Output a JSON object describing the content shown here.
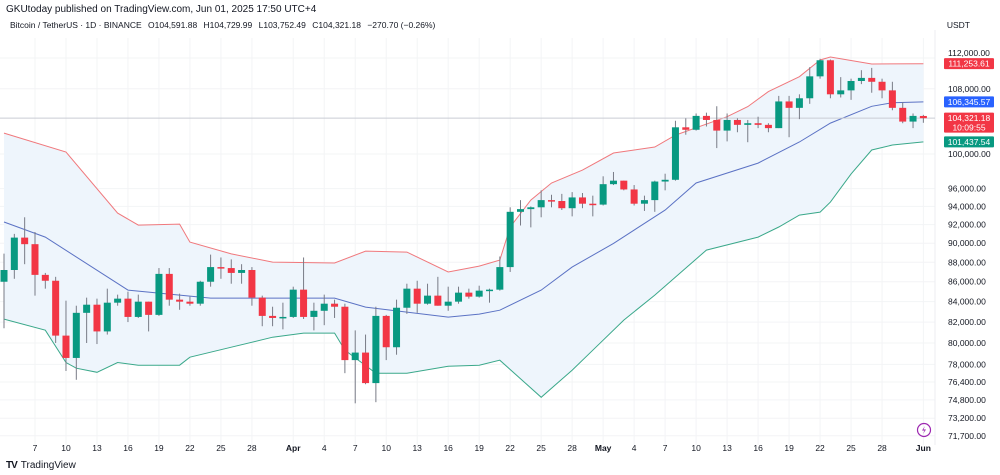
{
  "header": {
    "published": "GKUtoday published on TradingView.com, Jun 01, 2025 17:50 UTC+4",
    "symbol": "Bitcoin / TetherUS · 1D · BINANCE",
    "open": "O104,591.88",
    "high": "H104,729.99",
    "low": "L103,752.49",
    "close": "C104,321.18",
    "change": "−270.70 (−0.26%)",
    "quote_currency": "USDT"
  },
  "footer": {
    "brand": "TradingView",
    "brand_mark": "TV"
  },
  "colors": {
    "up": "#089981",
    "down": "#f23645",
    "upper_band": "#f0787c",
    "basis": "#5b72c4",
    "lower_band": "#3aa88a",
    "band_fill": "#eef5fc",
    "last_price": "#f23645"
  },
  "chart_data": {
    "type": "candlestick",
    "title": "",
    "scale": "log",
    "grid": true,
    "ylim": [
      71000,
      114500
    ],
    "y_ticks": [
      "112,000.00",
      "108,000.00",
      "100,000.00",
      "96,000.00",
      "94,000.00",
      "92,000.00",
      "90,000.00",
      "88,000.00",
      "86,000.00",
      "84,000.00",
      "82,000.00",
      "80,000.00",
      "78,000.00",
      "76,400.00",
      "74,800.00",
      "73,200.00",
      "71,700.00"
    ],
    "x_ticks": [
      {
        "date": "2025-03-07",
        "label": "7"
      },
      {
        "date": "2025-03-10",
        "label": "10"
      },
      {
        "date": "2025-03-13",
        "label": "13"
      },
      {
        "date": "2025-03-16",
        "label": "16"
      },
      {
        "date": "2025-03-19",
        "label": "19"
      },
      {
        "date": "2025-03-22",
        "label": "22"
      },
      {
        "date": "2025-03-25",
        "label": "25"
      },
      {
        "date": "2025-03-28",
        "label": "28"
      },
      {
        "date": "2025-04-01",
        "label": "Apr",
        "bold": true
      },
      {
        "date": "2025-04-04",
        "label": "4"
      },
      {
        "date": "2025-04-07",
        "label": "7"
      },
      {
        "date": "2025-04-10",
        "label": "10"
      },
      {
        "date": "2025-04-13",
        "label": "13"
      },
      {
        "date": "2025-04-16",
        "label": "16"
      },
      {
        "date": "2025-04-19",
        "label": "19"
      },
      {
        "date": "2025-04-22",
        "label": "22"
      },
      {
        "date": "2025-04-25",
        "label": "25"
      },
      {
        "date": "2025-04-28",
        "label": "28"
      },
      {
        "date": "2025-05-01",
        "label": "May",
        "bold": true
      },
      {
        "date": "2025-05-04",
        "label": "4"
      },
      {
        "date": "2025-05-07",
        "label": "7"
      },
      {
        "date": "2025-05-10",
        "label": "10"
      },
      {
        "date": "2025-05-13",
        "label": "13"
      },
      {
        "date": "2025-05-16",
        "label": "16"
      },
      {
        "date": "2025-05-19",
        "label": "19"
      },
      {
        "date": "2025-05-22",
        "label": "22"
      },
      {
        "date": "2025-05-25",
        "label": "25"
      },
      {
        "date": "2025-05-28",
        "label": "28"
      },
      {
        "date": "2025-06-01",
        "label": "Jun",
        "bold": true
      }
    ],
    "first_date": "2025-03-04",
    "candles": [
      [
        86000,
        88900,
        81400,
        87200
      ],
      [
        87200,
        91000,
        86300,
        90600
      ],
      [
        90600,
        92800,
        87800,
        89900
      ],
      [
        89900,
        91200,
        84600,
        86700
      ],
      [
        86700,
        86900,
        85300,
        86100
      ],
      [
        86100,
        86500,
        80000,
        80700
      ],
      [
        80700,
        84100,
        77400,
        78600
      ],
      [
        78600,
        83600,
        76600,
        82900
      ],
      [
        82900,
        84400,
        80000,
        83700
      ],
      [
        83700,
        84300,
        79900,
        81100
      ],
      [
        81100,
        85300,
        80800,
        83900
      ],
      [
        83900,
        84700,
        83600,
        84300
      ],
      [
        84300,
        85000,
        82000,
        82500
      ],
      [
        82500,
        84700,
        82400,
        84000
      ],
      [
        84000,
        84000,
        81100,
        82700
      ],
      [
        82700,
        87400,
        82600,
        86800
      ],
      [
        86800,
        87400,
        83600,
        84200
      ],
      [
        84200,
        84800,
        83200,
        84000
      ],
      [
        84000,
        84500,
        83600,
        83800
      ],
      [
        83800,
        86100,
        83600,
        86000
      ],
      [
        86000,
        88800,
        85500,
        87500
      ],
      [
        87500,
        88500,
        86300,
        87400
      ],
      [
        87400,
        88300,
        85800,
        86900
      ],
      [
        86900,
        87800,
        85800,
        87200
      ],
      [
        87200,
        87500,
        83600,
        84400
      ],
      [
        84400,
        84600,
        81600,
        82600
      ],
      [
        82600,
        83500,
        81600,
        82400
      ],
      [
        82400,
        83900,
        81300,
        82500
      ],
      [
        82500,
        85500,
        82400,
        85200
      ],
      [
        85200,
        88500,
        82300,
        82500
      ],
      [
        82500,
        83900,
        81200,
        83100
      ],
      [
        83100,
        84700,
        81700,
        83800
      ],
      [
        83800,
        84200,
        82400,
        83500
      ],
      [
        83500,
        83800,
        77200,
        78400
      ],
      [
        78400,
        81200,
        74500,
        79100
      ],
      [
        79100,
        80800,
        76200,
        76300
      ],
      [
        76300,
        83500,
        74600,
        82600
      ],
      [
        82600,
        82700,
        78400,
        79600
      ],
      [
        79600,
        84200,
        78900,
        83400
      ],
      [
        83400,
        85800,
        82800,
        85300
      ],
      [
        85300,
        86100,
        82900,
        83800
      ],
      [
        83800,
        85800,
        83700,
        84600
      ],
      [
        84600,
        86500,
        83600,
        83600
      ],
      [
        83600,
        85500,
        83100,
        84000
      ],
      [
        84000,
        85500,
        83800,
        84900
      ],
      [
        84900,
        85300,
        84300,
        84500
      ],
      [
        84500,
        85600,
        84400,
        85100
      ],
      [
        85100,
        85300,
        83900,
        85200
      ],
      [
        85200,
        88600,
        85100,
        87500
      ],
      [
        87500,
        93900,
        87000,
        93400
      ],
      [
        93400,
        94700,
        91900,
        93700
      ],
      [
        93700,
        94000,
        91700,
        93900
      ],
      [
        93900,
        95800,
        92800,
        94700
      ],
      [
        94700,
        95300,
        93900,
        94600
      ],
      [
        94600,
        95400,
        93600,
        93800
      ],
      [
        93800,
        95600,
        92900,
        95000
      ],
      [
        95000,
        95500,
        93800,
        94300
      ],
      [
        94300,
        95200,
        92900,
        94200
      ],
      [
        94200,
        97400,
        94100,
        96500
      ],
      [
        96500,
        97900,
        96400,
        96900
      ],
      [
        96900,
        96900,
        95800,
        95900
      ],
      [
        95900,
        96400,
        94100,
        94300
      ],
      [
        94300,
        95200,
        93500,
        94700
      ],
      [
        94700,
        96900,
        93400,
        96800
      ],
      [
        96800,
        97700,
        95800,
        97000
      ],
      [
        97000,
        104000,
        96900,
        103200
      ],
      [
        103200,
        104300,
        102300,
        102900
      ],
      [
        102900,
        104900,
        102800,
        104600
      ],
      [
        104600,
        105000,
        103300,
        104100
      ],
      [
        104100,
        105800,
        100700,
        102800
      ],
      [
        102800,
        104900,
        101500,
        104100
      ],
      [
        104100,
        104300,
        102600,
        103500
      ],
      [
        103500,
        104100,
        101400,
        103700
      ],
      [
        103700,
        104500,
        103100,
        103500
      ],
      [
        103500,
        103700,
        102600,
        103100
      ],
      [
        103100,
        107100,
        103100,
        106400
      ],
      [
        106400,
        107100,
        102000,
        105600
      ],
      [
        105600,
        107300,
        104200,
        106800
      ],
      [
        106800,
        110800,
        106100,
        109600
      ],
      [
        109600,
        111900,
        109300,
        111700
      ],
      [
        111700,
        111800,
        106800,
        107300
      ],
      [
        107300,
        109500,
        106900,
        107800
      ],
      [
        107800,
        109300,
        106600,
        109000
      ],
      [
        109000,
        110400,
        108600,
        109400
      ],
      [
        109400,
        110700,
        107500,
        108900
      ],
      [
        108900,
        109300,
        106800,
        107800
      ],
      [
        107800,
        108900,
        105300,
        105600
      ],
      [
        105600,
        106300,
        103700,
        103900
      ],
      [
        103900,
        104900,
        103100,
        104600
      ],
      [
        104591.88,
        104729.99,
        103752.49,
        104321.18
      ]
    ],
    "bollinger": {
      "upper": [
        [
          "2025-03-04",
          102500
        ],
        [
          "2025-03-10",
          100230
        ],
        [
          "2025-03-15",
          93260
        ],
        [
          "2025-03-17",
          91950
        ],
        [
          "2025-03-21",
          92060
        ],
        [
          "2025-03-22",
          90120
        ],
        [
          "2025-03-26",
          88870
        ],
        [
          "2025-03-30",
          88020
        ],
        [
          "2025-04-05",
          87920
        ],
        [
          "2025-04-08",
          89170
        ],
        [
          "2025-04-12",
          89060
        ],
        [
          "2025-04-16",
          86990
        ],
        [
          "2025-04-19",
          87600
        ],
        [
          "2025-04-21",
          88230
        ],
        [
          "2025-04-22",
          91740
        ],
        [
          "2025-04-24",
          94700
        ],
        [
          "2025-04-26",
          96630
        ],
        [
          "2025-04-29",
          98120
        ],
        [
          "2025-05-02",
          100120
        ],
        [
          "2025-05-06",
          100830
        ],
        [
          "2025-05-08",
          102250
        ],
        [
          "2025-05-13",
          104500
        ],
        [
          "2025-05-15",
          105750
        ],
        [
          "2025-05-17",
          107650
        ],
        [
          "2025-05-20",
          109550
        ],
        [
          "2025-05-22",
          111740
        ],
        [
          "2025-05-23",
          112130
        ],
        [
          "2025-05-27",
          111210
        ],
        [
          "2025-06-01",
          111253.61
        ]
      ],
      "basis": [
        [
          "2025-03-04",
          92280
        ],
        [
          "2025-03-08",
          90650
        ],
        [
          "2025-03-16",
          85150
        ],
        [
          "2025-03-18",
          84950
        ],
        [
          "2025-03-24",
          84350
        ],
        [
          "2025-03-30",
          84350
        ],
        [
          "2025-04-05",
          84350
        ],
        [
          "2025-04-08",
          83460
        ],
        [
          "2025-04-16",
          82480
        ],
        [
          "2025-04-19",
          82780
        ],
        [
          "2025-04-21",
          83160
        ],
        [
          "2025-04-25",
          85150
        ],
        [
          "2025-04-28",
          87500
        ],
        [
          "2025-05-02",
          89980
        ],
        [
          "2025-05-07",
          93590
        ],
        [
          "2025-05-10",
          96630
        ],
        [
          "2025-05-16",
          98930
        ],
        [
          "2025-05-20",
          101420
        ],
        [
          "2025-05-23",
          103710
        ],
        [
          "2025-05-27",
          105790
        ],
        [
          "2025-05-29",
          106240
        ],
        [
          "2025-06-01",
          106345.57
        ]
      ],
      "lower": [
        [
          "2025-03-04",
          82290
        ],
        [
          "2025-03-08",
          81220
        ],
        [
          "2025-03-10",
          78180
        ],
        [
          "2025-03-11",
          77650
        ],
        [
          "2025-03-13",
          77280
        ],
        [
          "2025-03-15",
          78180
        ],
        [
          "2025-03-17",
          77930
        ],
        [
          "2025-03-21",
          77930
        ],
        [
          "2025-03-22",
          78670
        ],
        [
          "2025-03-26",
          79600
        ],
        [
          "2025-03-30",
          80550
        ],
        [
          "2025-04-02",
          80940
        ],
        [
          "2025-04-05",
          80940
        ],
        [
          "2025-04-06",
          79320
        ],
        [
          "2025-04-09",
          77190
        ],
        [
          "2025-04-12",
          77190
        ],
        [
          "2025-04-16",
          77840
        ],
        [
          "2025-04-19",
          77930
        ],
        [
          "2025-04-21",
          78390
        ],
        [
          "2025-04-25",
          75030
        ],
        [
          "2025-04-28",
          77470
        ],
        [
          "2025-04-30",
          79320
        ],
        [
          "2025-05-03",
          82190
        ],
        [
          "2025-05-06",
          84650
        ],
        [
          "2025-05-11",
          89270
        ],
        [
          "2025-05-16",
          90650
        ],
        [
          "2025-05-18",
          91740
        ],
        [
          "2025-05-20",
          93040
        ],
        [
          "2025-05-22",
          93370
        ],
        [
          "2025-05-23",
          94480
        ],
        [
          "2025-05-25",
          97680
        ],
        [
          "2025-05-27",
          100470
        ],
        [
          "2025-05-29",
          101070
        ],
        [
          "2025-06-01",
          101437.54
        ]
      ]
    },
    "price_labels": {
      "upper": "111,253.61",
      "basis": "106,345.57",
      "last": "104,321.18",
      "countdown": "10:09:55",
      "lower": "101,437.54"
    },
    "last_price": 104321.18
  }
}
